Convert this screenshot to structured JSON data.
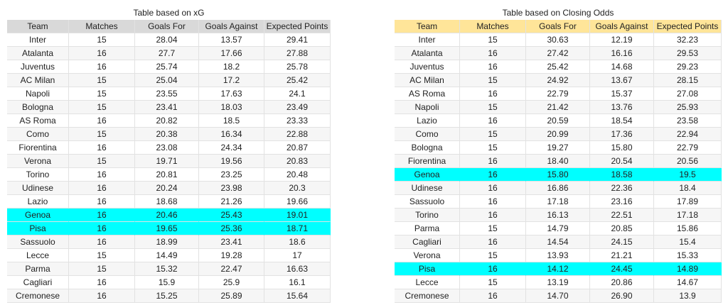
{
  "tables": [
    {
      "title": "Table based on xG",
      "header_color": "#d9d9d9",
      "highlight_color": "#00ffff",
      "highlighted_rows": [
        13,
        14
      ],
      "columns": [
        "Team",
        "Matches",
        "Goals For",
        "Goals Against",
        "Expected Points"
      ],
      "rows": [
        [
          "Inter",
          "15",
          "28.04",
          "13.57",
          "29.41"
        ],
        [
          "Atalanta",
          "16",
          "27.7",
          "17.66",
          "27.88"
        ],
        [
          "Juventus",
          "16",
          "25.74",
          "18.2",
          "25.78"
        ],
        [
          "AC Milan",
          "15",
          "25.04",
          "17.2",
          "25.42"
        ],
        [
          "Napoli",
          "15",
          "23.55",
          "17.63",
          "24.1"
        ],
        [
          "Bologna",
          "15",
          "23.41",
          "18.03",
          "23.49"
        ],
        [
          "AS Roma",
          "16",
          "20.82",
          "18.5",
          "23.33"
        ],
        [
          "Como",
          "15",
          "20.38",
          "16.34",
          "22.88"
        ],
        [
          "Fiorentina",
          "16",
          "23.08",
          "24.34",
          "20.87"
        ],
        [
          "Verona",
          "15",
          "19.71",
          "19.56",
          "20.83"
        ],
        [
          "Torino",
          "16",
          "20.81",
          "23.25",
          "20.48"
        ],
        [
          "Udinese",
          "16",
          "20.24",
          "23.98",
          "20.3"
        ],
        [
          "Lazio",
          "16",
          "18.68",
          "21.26",
          "19.66"
        ],
        [
          "Genoa",
          "16",
          "20.46",
          "25.43",
          "19.01"
        ],
        [
          "Pisa",
          "16",
          "19.65",
          "25.36",
          "18.71"
        ],
        [
          "Sassuolo",
          "16",
          "18.99",
          "23.41",
          "18.6"
        ],
        [
          "Lecce",
          "15",
          "14.49",
          "19.28",
          "17"
        ],
        [
          "Parma",
          "15",
          "15.32",
          "22.47",
          "16.63"
        ],
        [
          "Cagliari",
          "16",
          "15.9",
          "25.9",
          "16.1"
        ],
        [
          "Cremonese",
          "16",
          "15.25",
          "25.89",
          "15.64"
        ]
      ]
    },
    {
      "title": "Table based on Closing Odds",
      "header_color": "#ffe599",
      "highlight_color": "#00ffff",
      "highlighted_rows": [
        10,
        17
      ],
      "columns": [
        "Team",
        "Matches",
        "Goals For",
        "Goals Against",
        "Expected Points"
      ],
      "rows": [
        [
          "Inter",
          "15",
          "30.63",
          "12.19",
          "32.23"
        ],
        [
          "Atalanta",
          "16",
          "27.42",
          "16.16",
          "29.53"
        ],
        [
          "Juventus",
          "16",
          "25.42",
          "14.68",
          "29.23"
        ],
        [
          "AC Milan",
          "15",
          "24.92",
          "13.67",
          "28.15"
        ],
        [
          "AS Roma",
          "16",
          "22.79",
          "15.37",
          "27.08"
        ],
        [
          "Napoli",
          "15",
          "21.42",
          "13.76",
          "25.93"
        ],
        [
          "Lazio",
          "16",
          "20.59",
          "18.54",
          "23.58"
        ],
        [
          "Como",
          "15",
          "20.99",
          "17.36",
          "22.94"
        ],
        [
          "Bologna",
          "15",
          "19.27",
          "15.80",
          "22.79"
        ],
        [
          "Fiorentina",
          "16",
          "18.40",
          "20.54",
          "20.56"
        ],
        [
          "Genoa",
          "16",
          "15.80",
          "18.58",
          "19.5"
        ],
        [
          "Udinese",
          "16",
          "16.86",
          "22.36",
          "18.4"
        ],
        [
          "Sassuolo",
          "16",
          "17.18",
          "23.16",
          "17.89"
        ],
        [
          "Torino",
          "16",
          "16.13",
          "22.51",
          "17.18"
        ],
        [
          "Parma",
          "15",
          "14.79",
          "20.85",
          "15.86"
        ],
        [
          "Cagliari",
          "16",
          "14.54",
          "24.15",
          "15.4"
        ],
        [
          "Verona",
          "15",
          "13.93",
          "21.21",
          "15.33"
        ],
        [
          "Pisa",
          "16",
          "14.12",
          "24.45",
          "14.89"
        ],
        [
          "Lecce",
          "15",
          "13.19",
          "20.86",
          "14.67"
        ],
        [
          "Cremonese",
          "16",
          "14.70",
          "26.90",
          "13.9"
        ]
      ]
    }
  ]
}
